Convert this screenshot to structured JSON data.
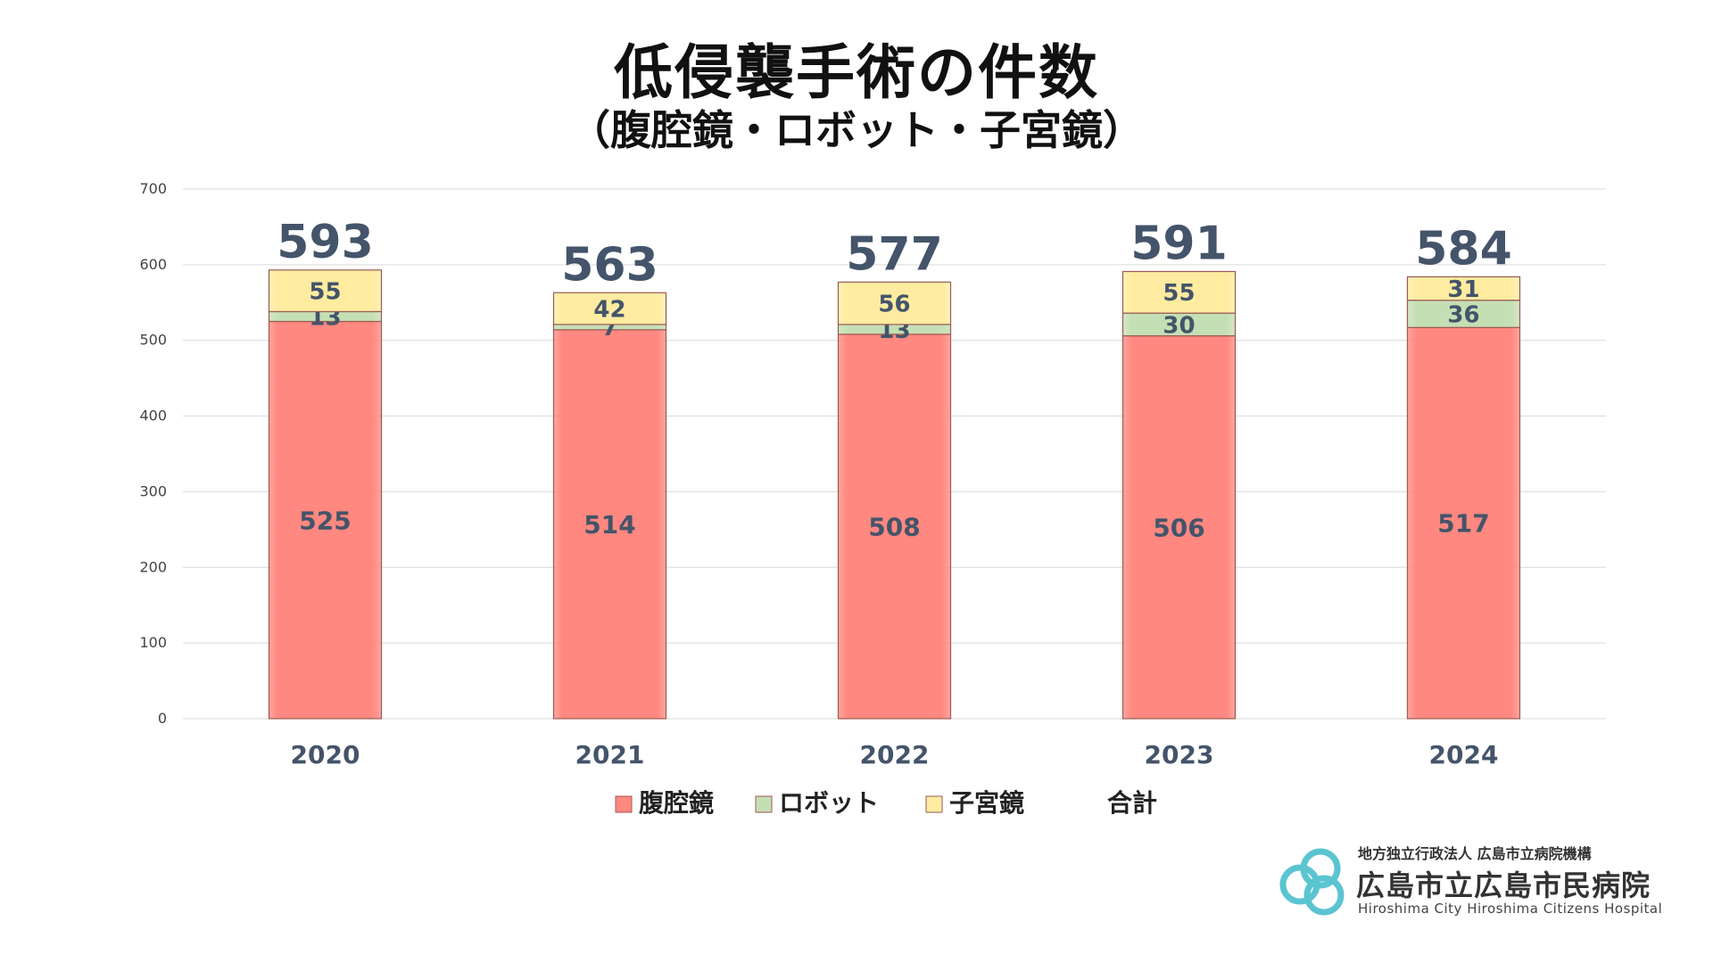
{
  "title": "低侵襲手術の件数",
  "subtitle": "（腹腔鏡・ロボット・子宮鏡）",
  "chart_data": {
    "type": "bar",
    "stacked": true,
    "categories": [
      "2020",
      "2021",
      "2022",
      "2023",
      "2024"
    ],
    "series": [
      {
        "name": "腹腔鏡",
        "values": [
          525,
          514,
          508,
          506,
          517
        ],
        "color": "#ff8880"
      },
      {
        "name": "ロボット",
        "values": [
          13,
          7,
          13,
          30,
          36
        ],
        "color": "#c5dfb4"
      },
      {
        "name": "子宮鏡",
        "values": [
          55,
          42,
          56,
          55,
          31
        ],
        "color": "#ffeca0"
      }
    ],
    "totals_label": "合計",
    "totals": [
      593,
      563,
      577,
      591,
      584
    ],
    "ylim": [
      0,
      700
    ],
    "yticks": [
      "0",
      "100",
      "200",
      "300",
      "400",
      "500",
      "600",
      "700"
    ],
    "grid": true,
    "legend_position": "bottom"
  },
  "colors": {
    "segment_border": "#9a5a52",
    "gridline": "#d9d9d9",
    "axis_text": "#444444",
    "category_text": "#44546a",
    "total_text": "#44546a",
    "value_text": "#44546a",
    "logo_accent": "#5bc4d1"
  },
  "logo": {
    "icon": "hospital-logo-mark",
    "line1": "地方独立行政法人 広島市立病院機構",
    "line2": "広島市立広島市民病院",
    "line3": "Hiroshima City Hiroshima Citizens Hospital"
  }
}
